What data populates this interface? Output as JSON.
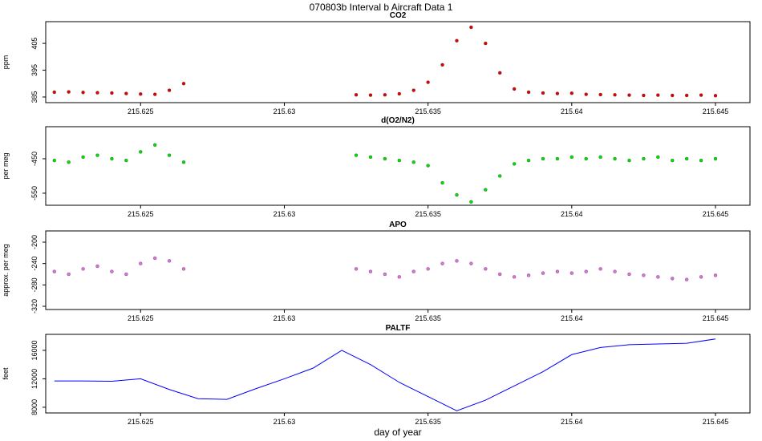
{
  "title": "070803b   Interval b Aircraft Data 1",
  "chart_data": [
    {
      "type": "scatter",
      "title": "CO2",
      "ylabel": "ppm",
      "color": "#e00000",
      "x": [
        215.622,
        215.6225,
        215.623,
        215.6235,
        215.624,
        215.6245,
        215.625,
        215.6255,
        215.626,
        215.6265,
        215.6325,
        215.633,
        215.6335,
        215.634,
        215.6345,
        215.635,
        215.6355,
        215.636,
        215.6365,
        215.637,
        215.6375,
        215.638,
        215.6385,
        215.639,
        215.6395,
        215.64,
        215.6405,
        215.641,
        215.6415,
        215.642,
        215.6425,
        215.643,
        215.6435,
        215.644,
        215.6445,
        215.645
      ],
      "values": [
        386.8,
        386.9,
        386.7,
        386.6,
        386.5,
        386.3,
        386.1,
        386.0,
        387.5,
        390.0,
        385.8,
        385.7,
        385.8,
        386.2,
        387.5,
        390.5,
        397,
        406,
        411,
        405,
        394,
        388,
        386.8,
        386.5,
        386.3,
        386.4,
        386.0,
        385.9,
        385.8,
        385.7,
        385.6,
        385.7,
        385.6,
        385.6,
        385.7,
        385.5
      ],
      "xlim": [
        215.6217,
        215.6462
      ],
      "xticks": [
        215.625,
        215.63,
        215.635,
        215.64,
        215.645
      ],
      "ylim": [
        382.9,
        413.1
      ],
      "yticks": [
        385,
        395,
        405
      ]
    },
    {
      "type": "scatter",
      "title": "d(O2/N2)",
      "ylabel": "per meg",
      "color": "#00e000",
      "x": [
        215.622,
        215.6225,
        215.623,
        215.6235,
        215.624,
        215.6245,
        215.625,
        215.6255,
        215.626,
        215.6265,
        215.6325,
        215.633,
        215.6335,
        215.634,
        215.6345,
        215.635,
        215.6355,
        215.636,
        215.6365,
        215.637,
        215.6375,
        215.638,
        215.6385,
        215.639,
        215.6395,
        215.64,
        215.6405,
        215.641,
        215.6415,
        215.642,
        215.6425,
        215.643,
        215.6435,
        215.644,
        215.6445,
        215.645
      ],
      "values": [
        -455,
        -460,
        -445,
        -440,
        -450,
        -455,
        -430,
        -410,
        -440,
        -460,
        -440,
        -445,
        -450,
        -455,
        -460,
        -470,
        -520,
        -555,
        -575,
        -540,
        -500,
        -465,
        -455,
        -450,
        -450,
        -445,
        -450,
        -445,
        -450,
        -455,
        -450,
        -445,
        -455,
        -450,
        -455,
        -450
      ],
      "xlim": [
        215.6217,
        215.6462
      ],
      "xticks": [
        215.625,
        215.63,
        215.635,
        215.64,
        215.645
      ],
      "ylim": [
        -585,
        -357
      ],
      "yticks": [
        -450,
        -550
      ]
    },
    {
      "type": "scatter",
      "title": "APO",
      "ylabel": "approx. per meg",
      "color": "#e070e0",
      "x": [
        215.622,
        215.6225,
        215.623,
        215.6235,
        215.624,
        215.6245,
        215.625,
        215.6255,
        215.626,
        215.6265,
        215.6325,
        215.633,
        215.6335,
        215.634,
        215.6345,
        215.635,
        215.6355,
        215.636,
        215.6365,
        215.637,
        215.6375,
        215.638,
        215.6385,
        215.639,
        215.6395,
        215.64,
        215.6405,
        215.641,
        215.6415,
        215.642,
        215.6425,
        215.643,
        215.6435,
        215.644,
        215.6445,
        215.645
      ],
      "values": [
        -255,
        -260,
        -250,
        -245,
        -255,
        -260,
        -240,
        -230,
        -235,
        -250,
        -250,
        -255,
        -260,
        -265,
        -255,
        -250,
        -240,
        -235,
        -240,
        -250,
        -260,
        -265,
        -262,
        -258,
        -255,
        -258,
        -255,
        -250,
        -255,
        -260,
        -262,
        -265,
        -268,
        -270,
        -265,
        -262
      ],
      "xlim": [
        215.6217,
        215.6462
      ],
      "xticks": [
        215.625,
        215.63,
        215.635,
        215.64,
        215.645
      ],
      "ylim": [
        -326,
        -179
      ],
      "yticks": [
        -200,
        -240,
        -280,
        -320
      ]
    },
    {
      "type": "line",
      "title": "PALTF",
      "ylabel": "feet",
      "xlabel": "day of year",
      "color": "#0000ff",
      "x": [
        215.622,
        215.623,
        215.624,
        215.625,
        215.626,
        215.627,
        215.628,
        215.629,
        215.63,
        215.631,
        215.632,
        215.633,
        215.634,
        215.635,
        215.636,
        215.637,
        215.638,
        215.639,
        215.64,
        215.641,
        215.642,
        215.643,
        215.644,
        215.645
      ],
      "values": [
        11700,
        11700,
        11650,
        12000,
        10500,
        9200,
        9100,
        10600,
        12000,
        13500,
        16000,
        14000,
        11500,
        9500,
        7500,
        9000,
        11000,
        13000,
        15400,
        16400,
        16800,
        16900,
        17000,
        17600
      ],
      "xlim": [
        215.6217,
        215.6462
      ],
      "xticks": [
        215.625,
        215.63,
        215.635,
        215.64,
        215.645
      ],
      "ylim": [
        7200,
        18250
      ],
      "yticks": [
        8000,
        12000,
        16000
      ]
    }
  ]
}
